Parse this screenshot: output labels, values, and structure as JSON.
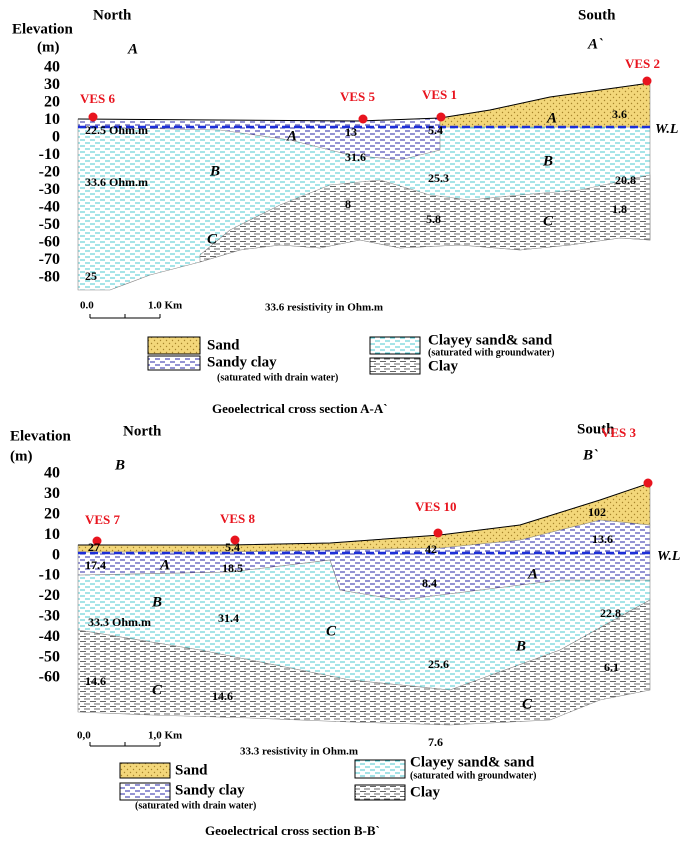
{
  "sections": [
    {
      "elevation": "Elevation",
      "unit": "(m)",
      "north": "North",
      "south": "South",
      "start": "A",
      "end": "A`",
      "yticks": [
        40,
        30,
        20,
        10,
        0,
        -10,
        -20,
        -30,
        -40,
        -50,
        -60,
        -70,
        -80
      ],
      "ves": [
        "VES 6",
        "VES 5",
        "VES 1",
        "VES 2"
      ],
      "labels": [
        "22.5  Ohm.m",
        "13",
        "5.4",
        "3.6",
        "A",
        "A",
        "31.6",
        "B",
        "B",
        "33.6 Ohm.m",
        "25.3",
        "20.8",
        "8",
        "5.8",
        "1.8",
        "C",
        "C",
        "25"
      ],
      "water_level": "W.L",
      "scale": [
        "0.0",
        "1.0 Km"
      ],
      "note": "33.6 resistivity in Ohm.m",
      "legend": [
        {
          "label": "Sand"
        },
        {
          "label": "Sandy clay",
          "note": "(saturated with drain water)"
        },
        {
          "label": "Clayey sand& sand",
          "note": "(saturated with groundwater)"
        },
        {
          "label": "Clay"
        }
      ],
      "title": "Geoelectrical cross section A-A`"
    },
    {
      "elevation": "Elevation",
      "unit": "(m)",
      "north": "North",
      "south": "South",
      "start": "B",
      "end": "B`",
      "yticks": [
        40,
        30,
        20,
        10,
        0,
        -10,
        -20,
        -30,
        -40,
        -50,
        -60
      ],
      "ves": [
        "VES 7",
        "VES 8",
        "VES 10",
        "VES 3"
      ],
      "labels": [
        "27",
        "5.4",
        "42",
        "102",
        "13.6",
        "17.4",
        "A",
        "18.5",
        "8.4",
        "A",
        "B",
        "33.3 Ohm.m",
        "31.4",
        "C",
        "22.8",
        "B",
        "25.6",
        "6.1",
        "14.6",
        "C",
        "14.6",
        "C",
        "7.6"
      ],
      "water_level": "W.L",
      "scale": [
        "0,0",
        "1,0 Km"
      ],
      "note": "33.3 resistivity in Ohm.m",
      "legend": [
        {
          "label": "Sand"
        },
        {
          "label": "Sandy clay",
          "note": "(saturated with drain water)"
        },
        {
          "label": "Clayey sand& sand",
          "note": "(saturated with groundwater)"
        },
        {
          "label": "Clay"
        }
      ],
      "title": "Geoelectrical cross section B-B`"
    }
  ]
}
